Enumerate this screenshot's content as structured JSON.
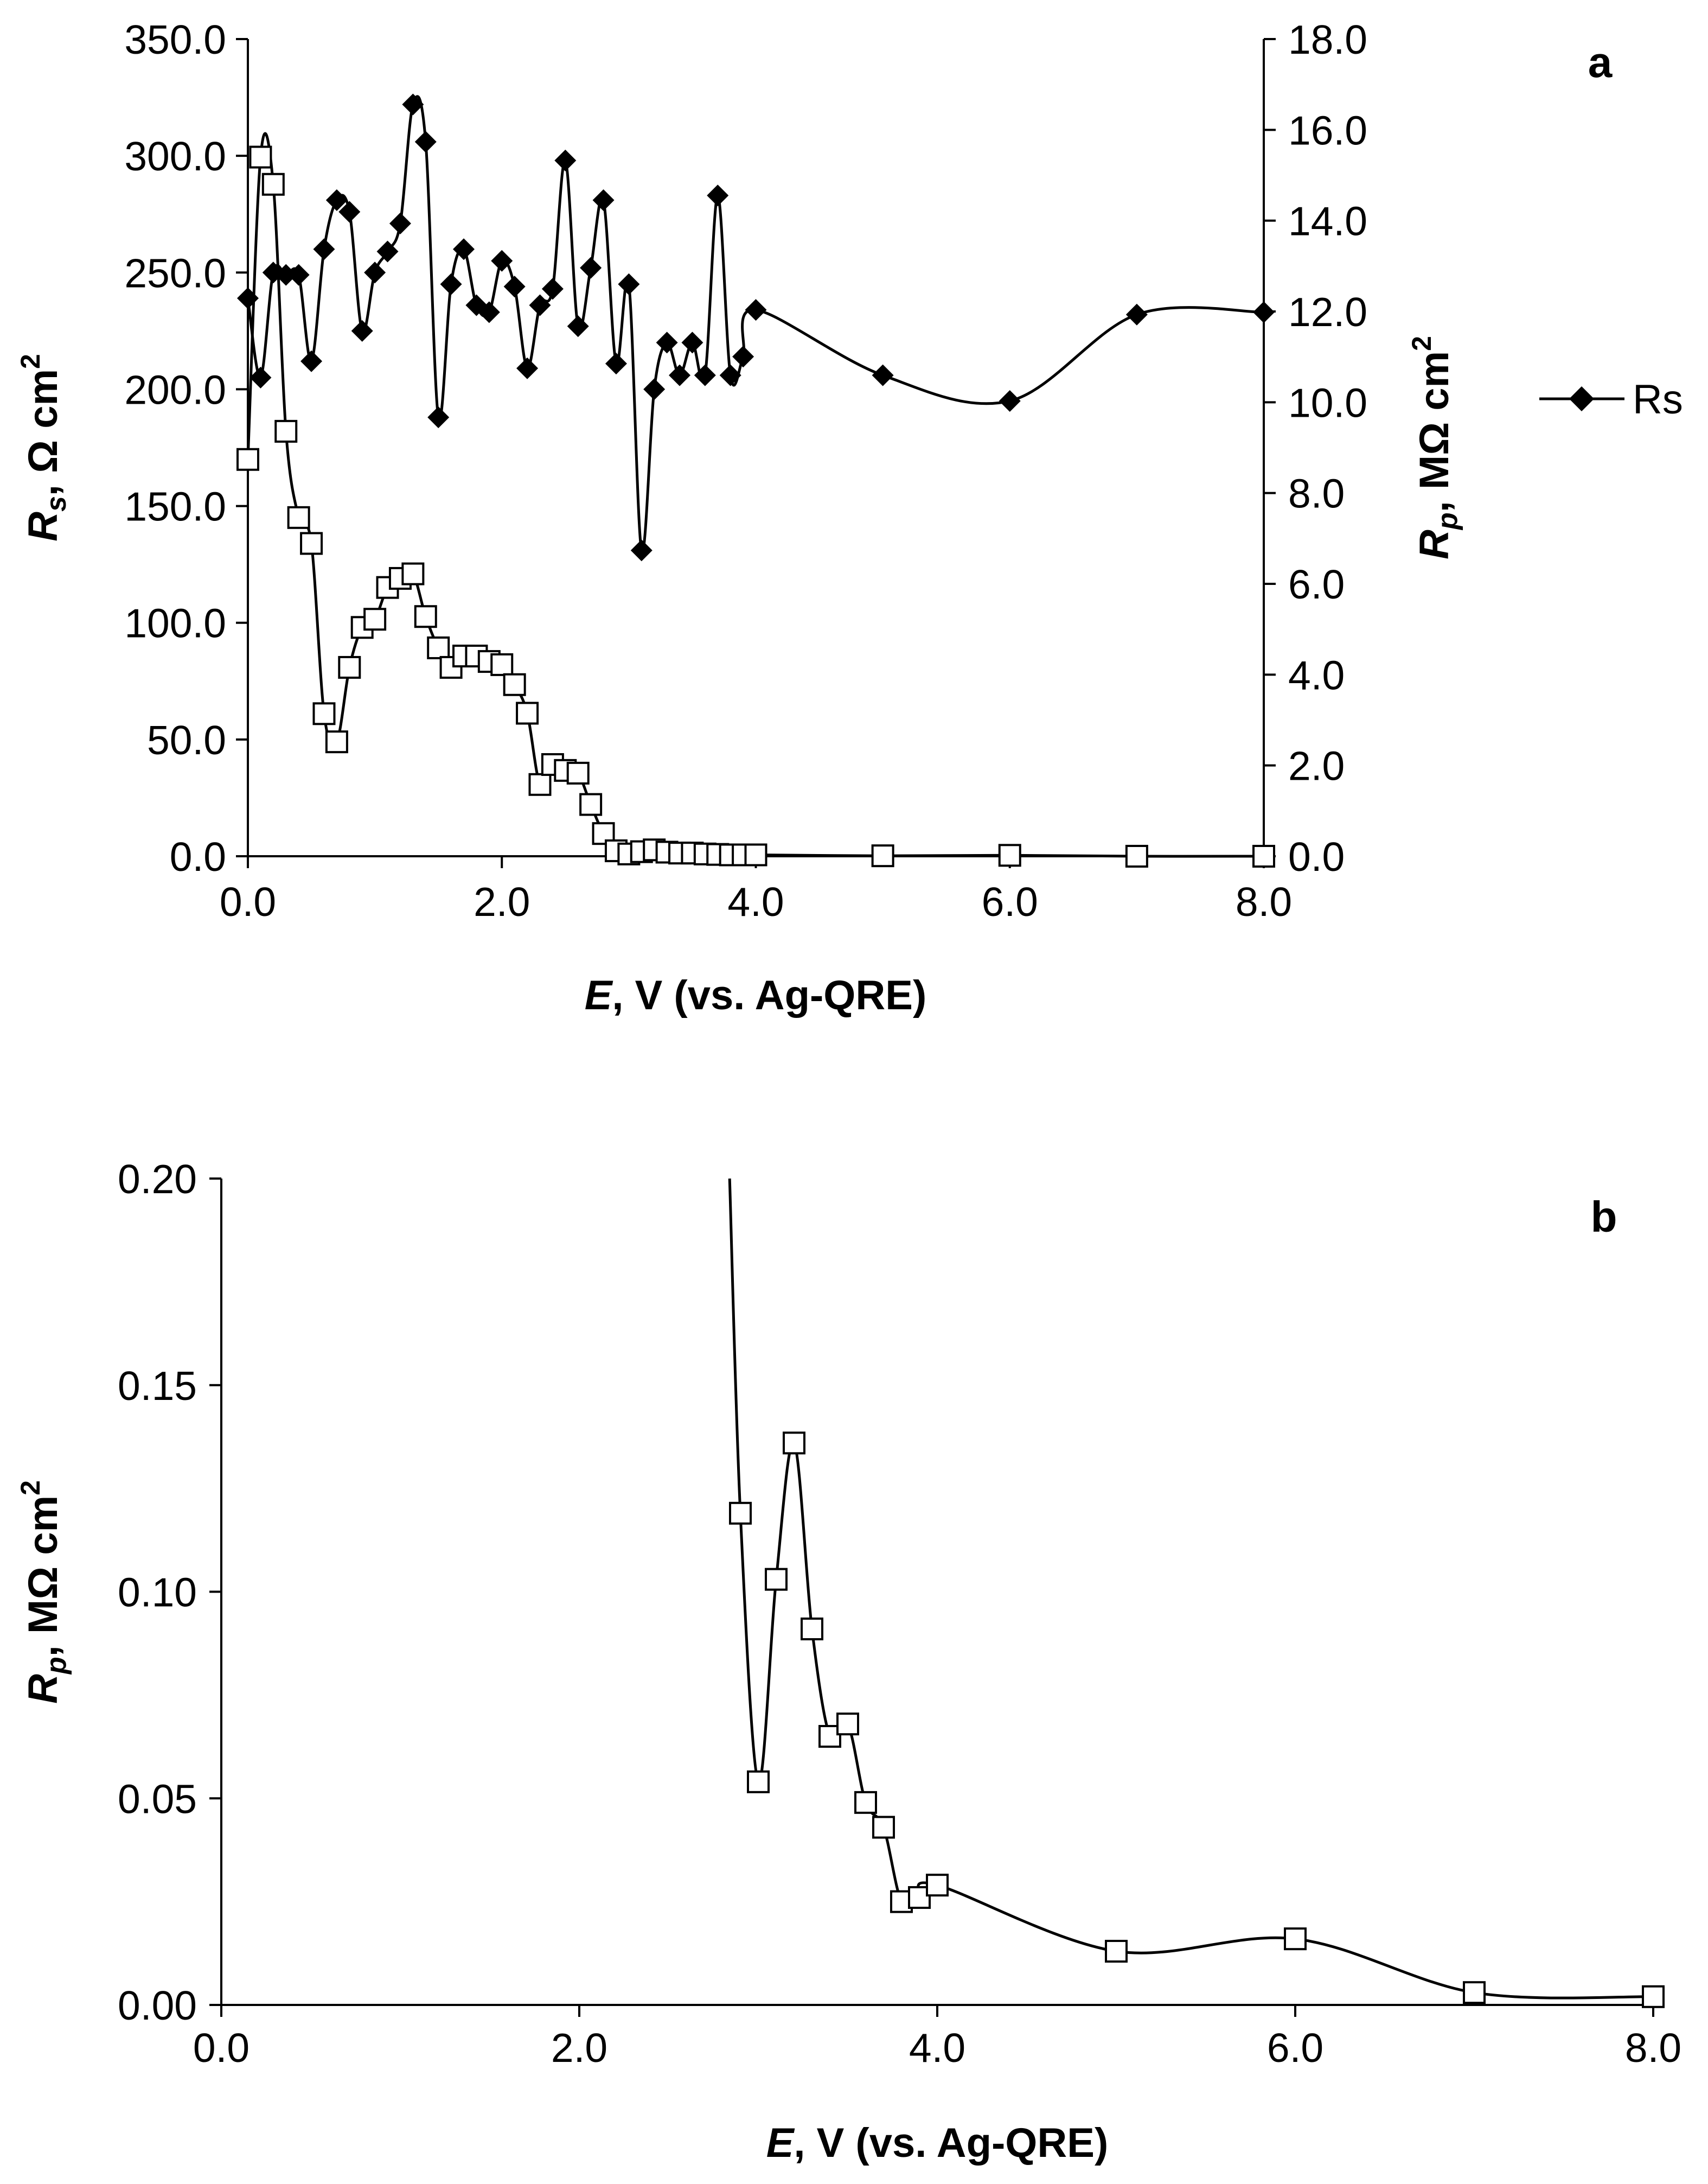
{
  "chart_data": [
    {
      "panel": "a",
      "type": "line",
      "panel_label": "a",
      "x_label_italic": "E",
      "x_label_rest": ", V (vs. Ag-QRE)",
      "xlim": [
        0,
        8
      ],
      "x_ticks": [
        "0.0",
        "2.0",
        "4.0",
        "6.0",
        "8.0"
      ],
      "y_left_label_italic": "R",
      "y_left_label_sub": "s",
      "y_left_label_rest": ", Ω cm",
      "y_left_label_sup": "2",
      "y_left_lim": [
        0,
        350
      ],
      "y_left_ticks": [
        "0.0",
        "50.0",
        "100.0",
        "150.0",
        "200.0",
        "250.0",
        "300.0",
        "350.0"
      ],
      "y_right_label_italic": "R",
      "y_right_label_sub": "p",
      "y_right_label_rest": ", MΩ cm",
      "y_right_label_sup": "2",
      "y_right_lim": [
        0,
        18
      ],
      "y_right_ticks": [
        "0.0",
        "2.0",
        "4.0",
        "6.0",
        "8.0",
        "10.0",
        "12.0",
        "14.0",
        "16.0",
        "18.0"
      ],
      "legend": {
        "entries": [
          "Rs"
        ],
        "position": "right"
      },
      "series": [
        {
          "name": "Rs",
          "axis": "left",
          "marker": "filled-diamond",
          "x": [
            0.0,
            0.1,
            0.2,
            0.3,
            0.4,
            0.5,
            0.6,
            0.7,
            0.8,
            0.9,
            1.0,
            1.1,
            1.2,
            1.3,
            1.4,
            1.5,
            1.6,
            1.7,
            1.8,
            1.9,
            2.0,
            2.1,
            2.2,
            2.3,
            2.4,
            2.5,
            2.6,
            2.7,
            2.8,
            2.9,
            3.0,
            3.1,
            3.2,
            3.3,
            3.4,
            3.5,
            3.6,
            3.7,
            3.8,
            3.9,
            4.0,
            5.0,
            6.0,
            7.0,
            8.0
          ],
          "values": [
            239,
            205,
            250,
            249,
            249,
            212,
            260,
            281,
            276,
            225,
            250,
            259,
            271,
            322,
            306,
            188,
            245,
            260,
            236,
            233,
            255,
            244,
            209,
            236,
            243,
            298,
            227,
            252,
            281,
            211,
            245,
            131,
            200,
            220,
            206,
            220,
            206,
            283,
            206,
            214,
            234,
            206,
            195,
            232,
            233
          ]
        },
        {
          "name": "Rp",
          "axis": "right",
          "marker": "open-square",
          "x": [
            0.0,
            0.1,
            0.2,
            0.3,
            0.4,
            0.5,
            0.6,
            0.7,
            0.8,
            0.9,
            1.0,
            1.1,
            1.2,
            1.3,
            1.4,
            1.5,
            1.6,
            1.7,
            1.8,
            1.9,
            2.0,
            2.1,
            2.2,
            2.3,
            2.4,
            2.5,
            2.6,
            2.7,
            2.8,
            2.9,
            3.0,
            3.1,
            3.2,
            3.3,
            3.4,
            3.5,
            3.6,
            3.7,
            3.8,
            3.9,
            4.0,
            5.0,
            6.0,
            7.0,
            8.0
          ],
          "values": [
            8.74,
            15.4,
            14.8,
            9.36,
            7.46,
            6.89,
            3.14,
            2.52,
            4.16,
            5.04,
            5.22,
            5.92,
            6.12,
            6.22,
            5.28,
            4.59,
            4.16,
            4.41,
            4.41,
            4.29,
            4.22,
            3.78,
            3.15,
            1.58,
            2.02,
            1.89,
            1.83,
            1.14,
            0.5,
            0.12,
            0.05,
            0.1,
            0.14,
            0.09,
            0.07,
            0.07,
            0.05,
            0.04,
            0.03,
            0.03,
            0.03,
            0.01,
            0.02,
            0.0,
            0.0
          ]
        }
      ]
    },
    {
      "panel": "b",
      "type": "line",
      "panel_label": "b",
      "x_label_italic": "E",
      "x_label_rest": ", V (vs. Ag-QRE)",
      "xlim": [
        0,
        8
      ],
      "x_ticks": [
        "0.0",
        "2.0",
        "4.0",
        "6.0",
        "8.0"
      ],
      "y_label_italic": "R",
      "y_label_sub": "p",
      "y_label_rest": ", MΩ cm",
      "y_label_sup": "2",
      "ylim": [
        0,
        0.2
      ],
      "y_ticks": [
        "0.00",
        "0.05",
        "0.10",
        "0.15",
        "0.20"
      ],
      "series": [
        {
          "name": "Rp",
          "marker": "open-square",
          "x": [
            2.9,
            3.0,
            3.1,
            3.2,
            3.3,
            3.4,
            3.5,
            3.6,
            3.7,
            3.8,
            3.9,
            4.0,
            5.0,
            6.0,
            7.0,
            8.0
          ],
          "values": [
            0.119,
            0.054,
            0.103,
            0.136,
            0.091,
            0.065,
            0.068,
            0.049,
            0.043,
            0.025,
            0.026,
            0.029,
            0.013,
            0.016,
            0.003,
            0.002
          ]
        }
      ]
    }
  ]
}
